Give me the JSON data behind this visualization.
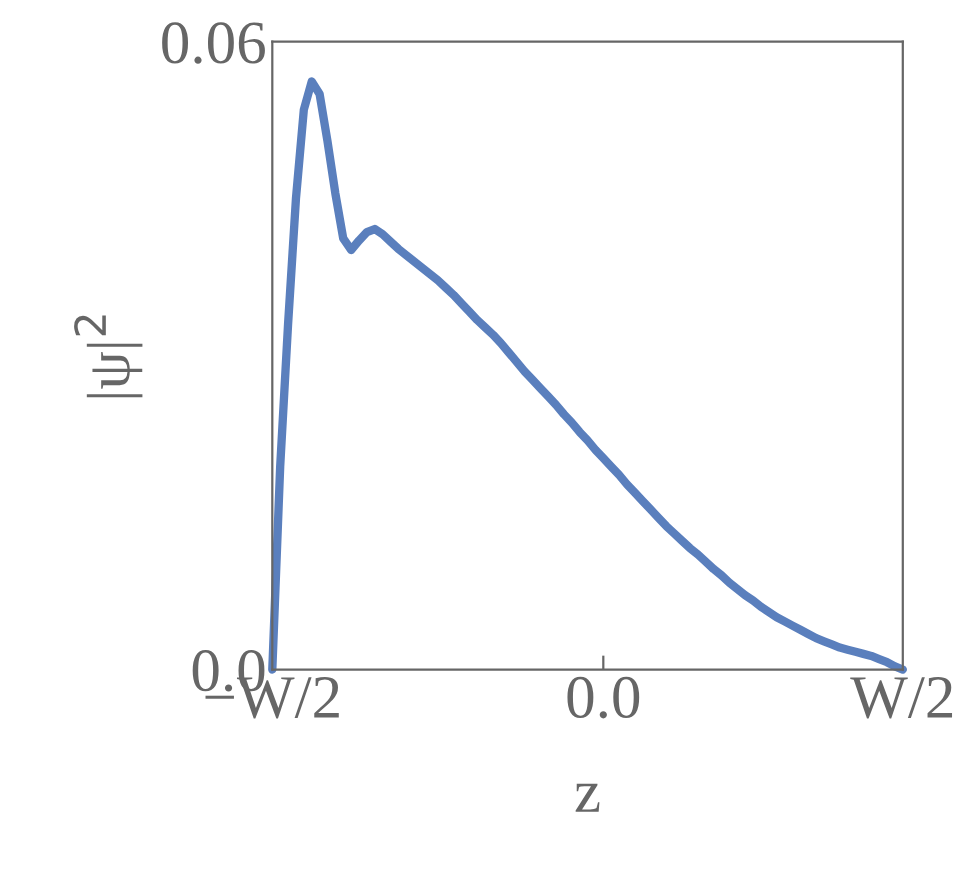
{
  "chart_data": {
    "type": "line",
    "xlabel": "z",
    "ylabel": "|ψ|$^{2}$",
    "categories": [
      "−W/2",
      null,
      null,
      null,
      null,
      null,
      null,
      null,
      null,
      null,
      null,
      null,
      null,
      null,
      null,
      null,
      null,
      null,
      null,
      null,
      null,
      null,
      null,
      null,
      null,
      null,
      null,
      null,
      null,
      null,
      null,
      null,
      null,
      null,
      null,
      null,
      null,
      null,
      null,
      null,
      null,
      null,
      "0.0",
      null,
      null,
      null,
      null,
      null,
      null,
      null,
      null,
      null,
      null,
      null,
      null,
      null,
      null,
      null,
      null,
      null,
      null,
      null,
      null,
      null,
      null,
      null,
      null,
      null,
      null,
      null,
      null,
      null,
      null,
      null,
      null,
      null,
      null,
      null,
      null,
      null,
      "W/2"
    ],
    "series": [
      {
        "color": "#5a7fbd",
        "values": [
          0,
          0.0194,
          0.033,
          0.045,
          0.0535,
          0.0562,
          0.055,
          0.0505,
          0.0455,
          0.0412,
          0.0401,
          0.041,
          0.0418,
          0.0421,
          0.0416,
          0.0409,
          0.0402,
          0.0396,
          0.039,
          0.0384,
          0.0378,
          0.0372,
          0.0365,
          0.0358,
          0.035,
          0.0342,
          0.0334,
          0.0327,
          0.032,
          0.0312,
          0.0303,
          0.0294,
          0.0285,
          0.0277,
          0.0269,
          0.0261,
          0.0253,
          0.0244,
          0.0236,
          0.0227,
          0.0219,
          0.021,
          0.0202,
          0.0194,
          0.0186,
          0.0177,
          0.0169,
          0.0161,
          0.0153,
          0.0145,
          0.0137,
          0.013,
          0.0123,
          0.0116,
          0.011,
          0.0103,
          0.0096,
          0.009,
          0.0083,
          0.0077,
          0.0071,
          0.0066,
          0.006,
          0.0055,
          0.005,
          0.0046,
          0.0042,
          0.0038,
          0.0034,
          0.003,
          0.0027,
          0.0024,
          0.0021,
          0.0019,
          0.0017,
          0.0015,
          0.0013,
          0.001,
          0.0007,
          0.0003,
          0
        ]
      }
    ],
    "ylim": [
      0,
      0.06
    ],
    "yticks": [
      {
        "value": 0,
        "label": "0.0"
      },
      0.06
    ],
    "grid": false,
    "marker": "none",
    "line_style": "solid"
  }
}
